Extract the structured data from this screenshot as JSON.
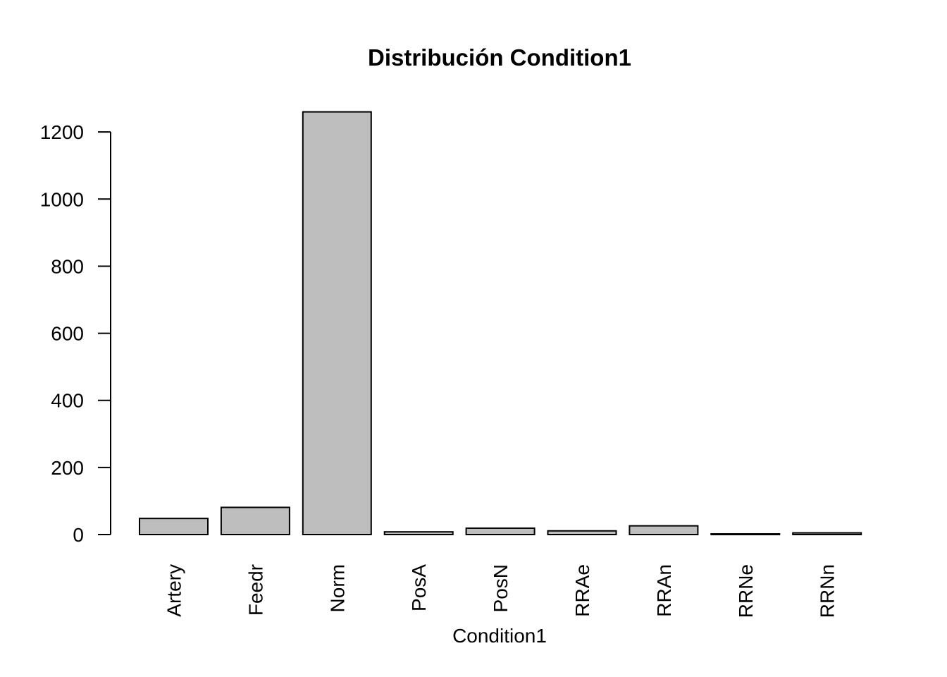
{
  "chart_data": {
    "type": "bar",
    "title": "Distribución Condition1",
    "xlabel": "Condition1",
    "ylabel": "",
    "categories": [
      "Artery",
      "Feedr",
      "Norm",
      "PosA",
      "PosN",
      "RRAe",
      "RRAn",
      "RRNe",
      "RRNn"
    ],
    "values": [
      48,
      81,
      1260,
      8,
      19,
      11,
      26,
      2,
      5
    ],
    "ylim": [
      0,
      1260
    ],
    "yticks": [
      0,
      200,
      400,
      600,
      800,
      1000,
      1200
    ],
    "ytick_labels": [
      "0",
      "200",
      "400",
      "600",
      "800",
      "1000",
      "1200"
    ],
    "bar_color": "#bebebe",
    "grid": false,
    "legend": "none"
  }
}
